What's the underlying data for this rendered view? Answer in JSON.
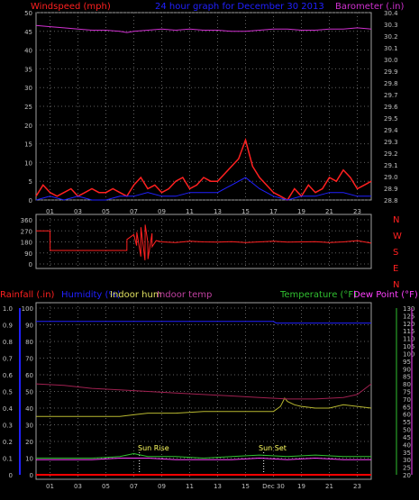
{
  "header": {
    "left_label": "Windspeed (mph)",
    "center_label": "24 hour graph for  December 30 2013",
    "right_label": "Barometer (.in)"
  },
  "direction_labels": [
    "N",
    "W",
    "S",
    "E",
    "N"
  ],
  "bottom_header": {
    "rainfall": "Rainfall (.in)",
    "humidity": "Humidity (%)",
    "indoor_hum": "Indoor hum",
    "indoor_temp": "Indoor temp",
    "temperature": "Temperature (°F)",
    "dew_point": "Dew Point (°F)"
  },
  "annotations": {
    "sun_rise": "Sun Rise",
    "sun_set": "Sun Set",
    "dec30": "Dec 30"
  },
  "colors": {
    "windspeed": "#ff2020",
    "gust": "#ff2020",
    "wind_avg": "#2020ff",
    "barometer": "#d030d0",
    "direction": "#ff2020",
    "humidity": "#2020ff",
    "indoor_hum": "#b8b830",
    "indoor_temp": "#a02050",
    "temperature": "#30c030",
    "dew_point": "#ff40ff",
    "rainfall": "#ff0000"
  },
  "chart_data": [
    {
      "type": "line",
      "title": "24 hour graph for  December 30 2013",
      "ylabel": "Windspeed (mph)",
      "y2label": "Barometer (.in)",
      "x_ticks": [
        "01",
        "03",
        "05",
        "07",
        "09",
        "11",
        "13",
        "15",
        "17",
        "19",
        "21",
        "23"
      ],
      "ylim": [
        0,
        50
      ],
      "y_ticks": [
        0,
        5,
        10,
        15,
        20,
        25,
        30,
        35,
        40,
        45,
        50
      ],
      "y2lim": [
        28.8,
        30.4
      ],
      "y2_ticks": [
        "28.8",
        "28.9",
        "29.0",
        "29.1",
        "29.2",
        "29.3",
        "29.4",
        "29.5",
        "29.6",
        "29.7",
        "29.8",
        "29.9",
        "30.0",
        "30.1",
        "30.2",
        "30.3",
        "30.4"
      ],
      "series": [
        {
          "name": "Windspeed (mph)",
          "axis": "left",
          "x": [
            0,
            0.5,
            1,
            1.5,
            2,
            2.5,
            3,
            3.5,
            4,
            4.5,
            5,
            5.5,
            6,
            6.5,
            7,
            7.5,
            8,
            8.5,
            9,
            9.5,
            10,
            10.5,
            11,
            11.5,
            12,
            12.5,
            13,
            13.5,
            14,
            14.5,
            15,
            15.5,
            16,
            16.5,
            17,
            17.5,
            18,
            18.5,
            19,
            19.5,
            20,
            20.5,
            21,
            21.5,
            22,
            22.5,
            23,
            23.5,
            24
          ],
          "values": [
            1,
            4,
            2,
            1,
            2,
            3,
            1,
            2,
            3,
            2,
            2,
            3,
            2,
            1,
            4,
            6,
            3,
            4,
            2,
            3,
            5,
            6,
            3,
            4,
            6,
            5,
            5,
            7,
            9,
            11,
            16,
            9,
            6,
            4,
            2,
            1,
            0,
            3,
            1,
            4,
            2,
            3,
            6,
            5,
            8,
            6,
            3,
            4,
            5
          ]
        },
        {
          "name": "Wind Average",
          "axis": "left",
          "x": [
            0,
            1,
            2,
            3,
            4,
            5,
            6,
            7,
            8,
            9,
            10,
            11,
            12,
            13,
            14,
            15,
            16,
            17,
            18,
            19,
            20,
            21,
            22,
            23,
            24
          ],
          "values": [
            0,
            1,
            0,
            1,
            0,
            0,
            1,
            1,
            2,
            1,
            1,
            2,
            2,
            2,
            4,
            6,
            3,
            1,
            0,
            1,
            1,
            2,
            2,
            1,
            1
          ]
        },
        {
          "name": "Barometer (.in)",
          "axis": "right",
          "x": [
            0,
            1,
            2,
            3,
            4,
            5,
            6,
            6.5,
            7,
            8,
            9,
            10,
            11,
            12,
            13,
            14,
            15,
            16,
            17,
            18,
            19,
            20,
            21,
            22,
            23,
            24
          ],
          "values": [
            30.29,
            30.28,
            30.27,
            30.26,
            30.25,
            30.25,
            30.24,
            30.23,
            30.24,
            30.25,
            30.26,
            30.25,
            30.26,
            30.25,
            30.25,
            30.24,
            30.24,
            30.25,
            30.26,
            30.26,
            30.25,
            30.25,
            30.26,
            30.26,
            30.27,
            30.26
          ]
        }
      ]
    },
    {
      "type": "line",
      "ylabel": "Wind direction",
      "x_ticks": [
        "01",
        "03",
        "05",
        "07",
        "09",
        "11",
        "13",
        "15",
        "17",
        "19",
        "21",
        "23"
      ],
      "ylim": [
        0,
        360
      ],
      "y_ticks": [
        0,
        90,
        180,
        270,
        360
      ],
      "series": [
        {
          "name": "Wind direction",
          "x": [
            0,
            1,
            1.01,
            2,
            3,
            4,
            5,
            6,
            6.5,
            6.51,
            7,
            7.2,
            7.21,
            7.5,
            7.51,
            7.8,
            7.81,
            8,
            8.01,
            8.3,
            8.31,
            8.6,
            9,
            10,
            11,
            12,
            13,
            14,
            15,
            16,
            17,
            18,
            19,
            20,
            21,
            22,
            23,
            24
          ],
          "values": [
            270,
            270,
            110,
            110,
            110,
            110,
            110,
            110,
            110,
            200,
            240,
            150,
            260,
            60,
            300,
            30,
            320,
            180,
            40,
            250,
            140,
            190,
            180,
            175,
            185,
            180,
            178,
            182,
            175,
            180,
            185,
            178,
            180,
            182,
            175,
            180,
            190,
            170
          ]
        }
      ]
    },
    {
      "type": "line",
      "ylabel": "Rainfall (.in) / Humidity (%)",
      "y2label": "Temperature (°F)",
      "x_ticks": [
        "01",
        "03",
        "05",
        "07",
        "09",
        "11",
        "13",
        "15",
        "Dec 30",
        "19",
        "21",
        "23"
      ],
      "ylim": [
        0,
        1.0
      ],
      "y_ticks": [
        "0",
        "0.1",
        "0.2",
        "0.3",
        "0.4",
        "0.5",
        "0.6",
        "0.7",
        "0.8",
        "0.9",
        "1.0"
      ],
      "y_ticks_right_pct": [
        0,
        10,
        20,
        30,
        40,
        50,
        60,
        70,
        80,
        90,
        100
      ],
      "y2lim": [
        20,
        130
      ],
      "y2_ticks": [
        20,
        25,
        30,
        35,
        40,
        45,
        50,
        55,
        60,
        65,
        70,
        75,
        80,
        85,
        90,
        95,
        100,
        105,
        110,
        115,
        120,
        125,
        130
      ],
      "series": [
        {
          "name": "Humidity (%)",
          "x": [
            0,
            17,
            17.2,
            24
          ],
          "values": [
            92,
            92,
            91,
            91
          ]
        },
        {
          "name": "Indoor hum",
          "x": [
            0,
            6,
            7,
            8,
            10,
            12,
            14,
            16,
            17,
            17.5,
            17.8,
            18,
            18.5,
            19,
            20,
            21,
            22,
            23,
            24
          ],
          "values": [
            35,
            35,
            36,
            37,
            37,
            38,
            38,
            38,
            38,
            41,
            46,
            44,
            42,
            41,
            40,
            40,
            42,
            41,
            40
          ]
        },
        {
          "name": "Indoor temp",
          "x": [
            0,
            2,
            4,
            6,
            8,
            10,
            12,
            14,
            16,
            18,
            20,
            22,
            23,
            24
          ],
          "values": [
            80,
            79,
            77,
            76,
            75,
            74,
            73,
            72,
            71,
            70,
            70,
            71,
            73,
            80
          ]
        },
        {
          "name": "Temperature (°F)",
          "x": [
            0,
            2,
            4,
            6,
            7,
            8,
            10,
            12,
            14,
            16,
            18,
            20,
            22,
            24
          ],
          "values": [
            31,
            31,
            31,
            32,
            34,
            32,
            32,
            31,
            32,
            33,
            32,
            33,
            32,
            32
          ]
        },
        {
          "name": "Dew Point (°F)",
          "x": [
            0,
            2,
            4,
            6,
            8,
            10,
            12,
            14,
            16,
            18,
            20,
            22,
            24
          ],
          "values": [
            30,
            30,
            30,
            31,
            31,
            30,
            30,
            30,
            31,
            30,
            31,
            30,
            30
          ]
        },
        {
          "name": "Rainfall (.in)",
          "x": [
            0,
            24
          ],
          "values": [
            0,
            0
          ]
        }
      ]
    }
  ]
}
